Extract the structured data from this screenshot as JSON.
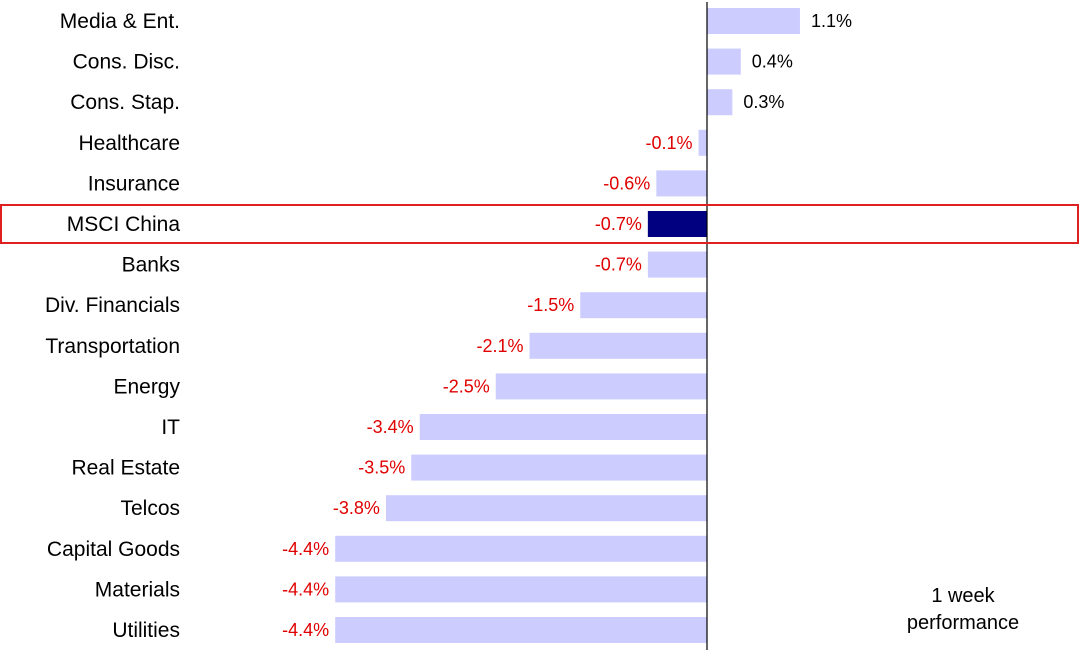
{
  "chart_data": {
    "type": "bar",
    "orientation": "horizontal",
    "categories": [
      "Media & Ent.",
      "Cons. Disc.",
      "Cons. Stap.",
      "Healthcare",
      "Insurance",
      "MSCI China",
      "Banks",
      "Div. Financials",
      "Transportation",
      "Energy",
      "IT",
      "Real Estate",
      "Telcos",
      "Capital Goods",
      "Materials",
      "Utilities"
    ],
    "values": [
      1.1,
      0.4,
      0.3,
      -0.1,
      -0.6,
      -0.7,
      -0.7,
      -1.5,
      -2.1,
      -2.5,
      -3.4,
      -3.5,
      -3.8,
      -4.4,
      -4.4,
      -4.4
    ],
    "value_labels": [
      "1.1%",
      "0.4%",
      "0.3%",
      "-0.1%",
      "-0.6%",
      "-0.7%",
      "-0.7%",
      "-1.5%",
      "-2.1%",
      "-2.5%",
      "-3.4%",
      "-3.5%",
      "-3.8%",
      "-4.4%",
      "-4.4%",
      "-4.4%"
    ],
    "highlight_category": "MSCI China",
    "caption": [
      "1 week",
      "performance"
    ],
    "colors": {
      "bar": "#ccccff",
      "highlight_bar": "#000080",
      "highlight_box": "#e02020",
      "positive_label": "#000000",
      "negative_label": "#e00000",
      "axis": "#000000"
    }
  }
}
